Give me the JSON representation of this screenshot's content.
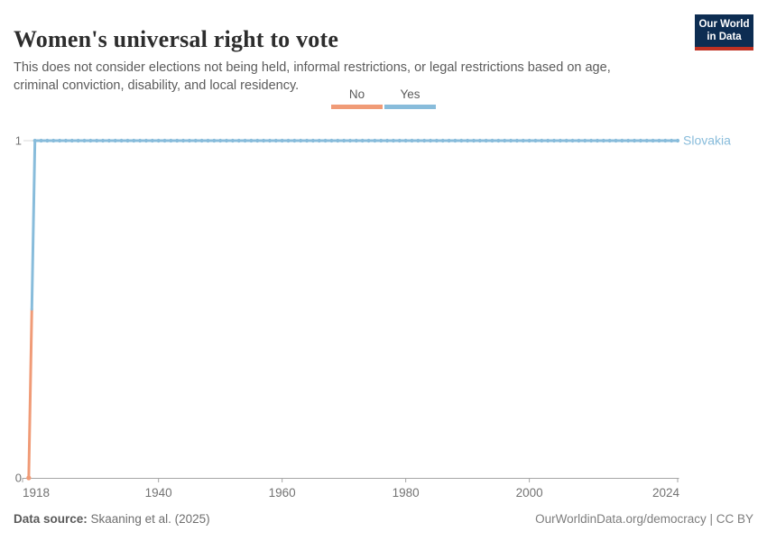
{
  "header": {
    "title": "Women's universal right to vote",
    "subtitle": "This does not consider elections not being held, informal restrictions, or legal restrictions based on age, criminal conviction, disability, and local residency.",
    "logo": {
      "line1": "Our World",
      "line2": "in Data"
    }
  },
  "colors": {
    "no": "#f09b77",
    "yes": "#88bcdb",
    "logo_bg": "#0d2d52",
    "logo_stripe": "#c03122",
    "axis": "#a5a5a5",
    "tick_label": "#737373",
    "gridline": "#d8d8d8",
    "entity_label": "#88bcdb"
  },
  "legend": {
    "items": [
      {
        "label": "No",
        "color": "#f09b77"
      },
      {
        "label": "Yes",
        "color": "#88bcdb"
      }
    ]
  },
  "chart_data": {
    "type": "line",
    "title": "Women's universal right to vote",
    "entity": "Slovakia",
    "legend_position": "top-center",
    "x": {
      "min": 1918,
      "max": 2024,
      "ticks": [
        1918,
        1940,
        1960,
        1980,
        2000,
        2024
      ]
    },
    "y": {
      "min": 0,
      "max": 1,
      "ticks": [
        0,
        1
      ]
    },
    "series": [
      {
        "name": "Slovakia",
        "color_by_value": {
          "0": "#f09b77",
          "1": "#88bcdb"
        },
        "value_labels": {
          "0": "No",
          "1": "Yes"
        },
        "segments": [
          {
            "from_year": 1919,
            "to_year": 1919,
            "value": 0,
            "category": "No"
          },
          {
            "from_year": 1920,
            "to_year": 2024,
            "value": 1,
            "category": "Yes"
          }
        ]
      }
    ]
  },
  "footer": {
    "datasource_label": "Data source:",
    "datasource_value": " Skaaning et al. (2025)",
    "license": "OurWorldinData.org/democracy | CC BY"
  }
}
